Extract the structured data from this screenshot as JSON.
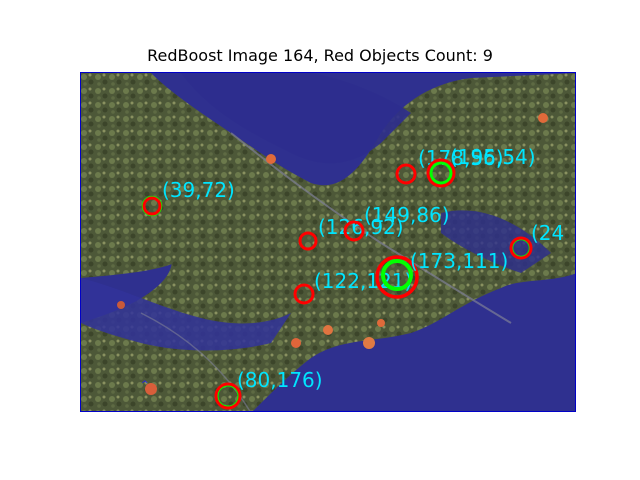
{
  "figure": {
    "title": "RedBoost Image 164, Red Objects Count: 9"
  },
  "colors": {
    "water": "#2a2a86",
    "vegetation": "#4f5a3c",
    "circle_outer": "#ff0000",
    "circle_inner": "#00ff00",
    "label": "#00e5ff",
    "frame": "#0000c8"
  },
  "detections": [
    {
      "label": "(39,72)"
    },
    {
      "label": "(80,176)"
    },
    {
      "label": "(122,121)"
    },
    {
      "label": "(126,92)"
    },
    {
      "label": "(149,86)"
    },
    {
      "label": "(173,111)"
    },
    {
      "label": "(178,56)"
    },
    {
      "label": "(195,54)"
    },
    {
      "label": "(24"
    }
  ]
}
